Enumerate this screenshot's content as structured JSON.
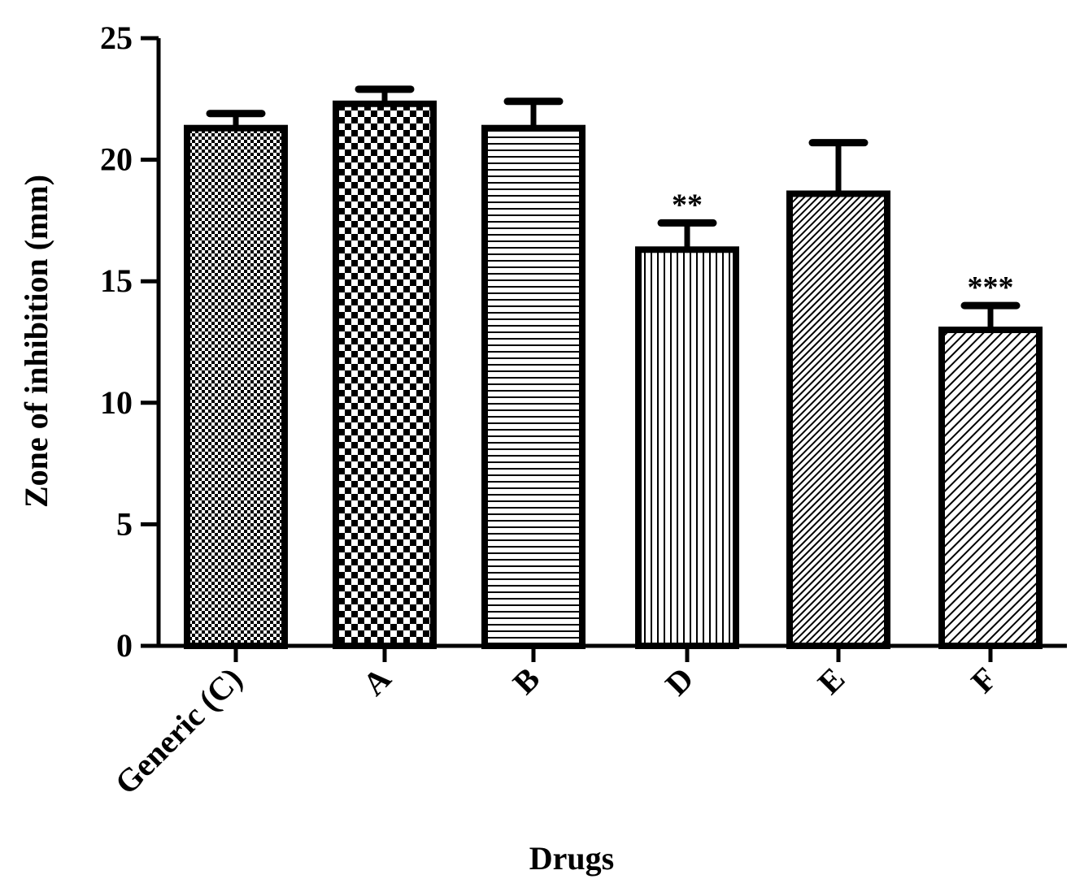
{
  "chart_data": {
    "type": "bar",
    "title": "",
    "xlabel": "Drugs",
    "ylabel": "Zone of inhibition (mm)",
    "ylim": [
      0,
      25
    ],
    "yticks": [
      0,
      5,
      10,
      15,
      20,
      25
    ],
    "ytick_labels": [
      "0",
      "5",
      "10",
      "15",
      "20",
      "25"
    ],
    "categories": [
      "Generic (C)",
      "A",
      "B",
      "D",
      "E",
      "F"
    ],
    "values": [
      21.3,
      22.3,
      21.3,
      16.3,
      18.6,
      13.0
    ],
    "errors": [
      0.6,
      0.6,
      1.1,
      1.1,
      2.1,
      1.0
    ],
    "significance": [
      "",
      "",
      "",
      "**",
      "",
      "***"
    ],
    "patterns": [
      "fine-checker",
      "coarse-checker",
      "horizontal-lines",
      "vertical-lines",
      "diagonal-fine",
      "diagonal-wide"
    ],
    "grid": false,
    "legend": "none",
    "bar_color": "#000000",
    "background": "#ffffff"
  }
}
